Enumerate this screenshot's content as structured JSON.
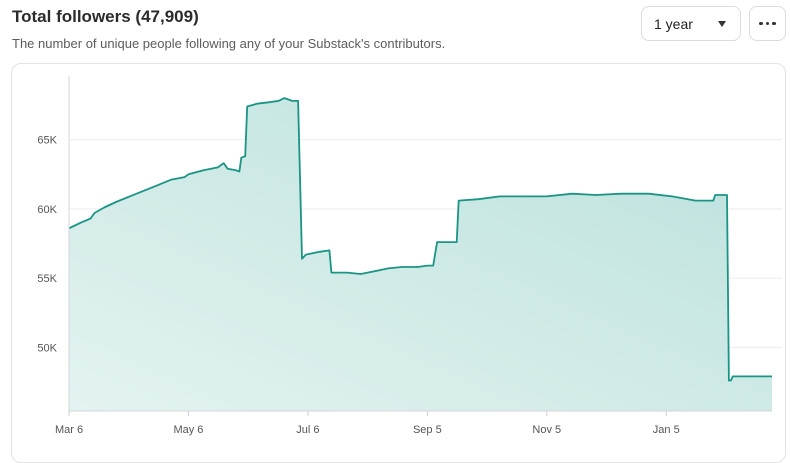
{
  "header": {
    "title": "Total followers (47,909)",
    "subtitle": "The number of unique people following any of your Substack's contributors."
  },
  "controls": {
    "range_label": "1 year",
    "more_icon": "ellipsis-icon",
    "dropdown_icon": "caret-down-icon"
  },
  "colors": {
    "line": "#1a9485",
    "fill_top": "#b9e0db",
    "fill_bottom": "#e4f3f1",
    "grid": "#ececec"
  },
  "chart_data": {
    "type": "area",
    "title": "Total followers (47,909)",
    "xlabel": "",
    "ylabel": "",
    "x_ticks": [
      "Mar 6",
      "May 6",
      "Jul 6",
      "Sep 5",
      "Nov 5",
      "Jan 5"
    ],
    "y_ticks": [
      50000,
      55000,
      60000,
      65000
    ],
    "y_tick_labels": [
      "50K",
      "55K",
      "60K",
      "65K"
    ],
    "ylim": [
      45400,
      69600
    ],
    "xlim": [
      "2024-03-06",
      "2025-02-28"
    ],
    "grid": "horizontal",
    "legend": "none",
    "series": [
      {
        "points": [
          [
            "2024-03-06",
            58600
          ],
          [
            "2024-03-09",
            58800
          ],
          [
            "2024-03-12",
            59000
          ],
          [
            "2024-03-17",
            59300
          ],
          [
            "2024-03-19",
            59700
          ],
          [
            "2024-03-24",
            60100
          ],
          [
            "2024-03-30",
            60500
          ],
          [
            "2024-04-06",
            60900
          ],
          [
            "2024-04-13",
            61300
          ],
          [
            "2024-04-20",
            61700
          ],
          [
            "2024-04-27",
            62100
          ],
          [
            "2024-05-04",
            62300
          ],
          [
            "2024-05-06",
            62500
          ],
          [
            "2024-05-14",
            62800
          ],
          [
            "2024-05-21",
            63000
          ],
          [
            "2024-05-24",
            63300
          ],
          [
            "2024-05-26",
            62900
          ],
          [
            "2024-05-30",
            62800
          ],
          [
            "2024-06-01",
            62700
          ],
          [
            "2024-06-02",
            63700
          ],
          [
            "2024-06-04",
            63800
          ],
          [
            "2024-06-05",
            67400
          ],
          [
            "2024-06-10",
            67600
          ],
          [
            "2024-06-16",
            67700
          ],
          [
            "2024-06-21",
            67800
          ],
          [
            "2024-06-24",
            68000
          ],
          [
            "2024-06-28",
            67800
          ],
          [
            "2024-07-01",
            67800
          ],
          [
            "2024-07-03",
            56400
          ],
          [
            "2024-07-05",
            56700
          ],
          [
            "2024-07-12",
            56900
          ],
          [
            "2024-07-17",
            57000
          ],
          [
            "2024-07-18",
            55400
          ],
          [
            "2024-07-26",
            55400
          ],
          [
            "2024-08-02",
            55300
          ],
          [
            "2024-08-09",
            55500
          ],
          [
            "2024-08-16",
            55700
          ],
          [
            "2024-08-23",
            55800
          ],
          [
            "2024-08-31",
            55800
          ],
          [
            "2024-09-05",
            55900
          ],
          [
            "2024-09-08",
            55900
          ],
          [
            "2024-09-10",
            57600
          ],
          [
            "2024-09-20",
            57600
          ],
          [
            "2024-09-21",
            60600
          ],
          [
            "2024-10-01",
            60700
          ],
          [
            "2024-10-12",
            60900
          ],
          [
            "2024-10-23",
            60900
          ],
          [
            "2024-11-05",
            60900
          ],
          [
            "2024-11-18",
            61100
          ],
          [
            "2024-11-30",
            61000
          ],
          [
            "2024-12-13",
            61100
          ],
          [
            "2024-12-27",
            61100
          ],
          [
            "2025-01-08",
            60900
          ],
          [
            "2025-01-20",
            60600
          ],
          [
            "2025-01-29",
            60600
          ],
          [
            "2025-01-30",
            61000
          ],
          [
            "2025-02-05",
            61000
          ],
          [
            "2025-02-06",
            47600
          ],
          [
            "2025-02-07",
            47600
          ],
          [
            "2025-02-08",
            47900
          ],
          [
            "2025-02-20",
            47900
          ],
          [
            "2025-02-28",
            47900
          ]
        ]
      }
    ]
  }
}
